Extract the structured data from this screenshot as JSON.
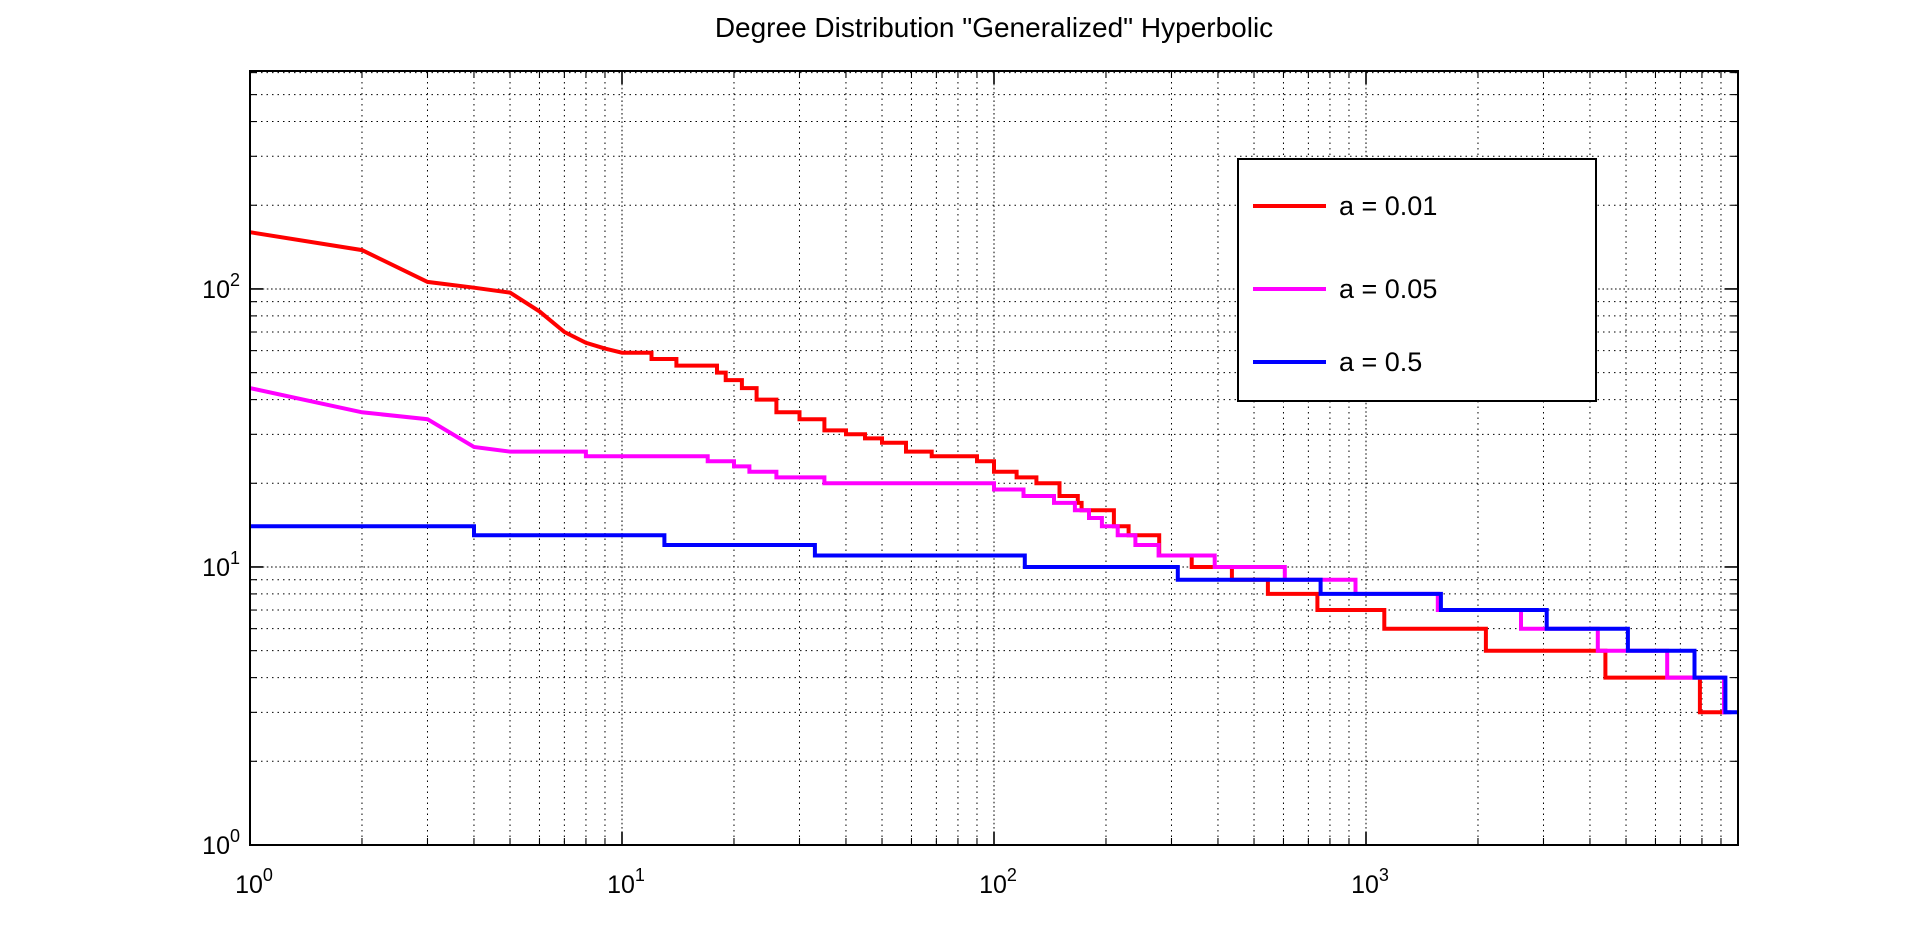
{
  "title": "Degree Distribution \"Generalized\" Hyperbolic",
  "legend": {
    "position": "upper-right",
    "entries": [
      {
        "label": "a = 0.01",
        "color": "#ff0000"
      },
      {
        "label": "a = 0.05",
        "color": "#ff00ff"
      },
      {
        "label": "a = 0.5",
        "color": "#0000ff"
      }
    ]
  },
  "axes": {
    "x_scale": "log",
    "y_scale": "log",
    "xlim": [
      1,
      10000
    ],
    "ylim": [
      1,
      608
    ],
    "x_tick_base": "10",
    "x_tick_exponents": [
      0,
      1,
      2,
      3
    ],
    "y_tick_base": "10",
    "y_tick_exponents": [
      0,
      1,
      2
    ],
    "grid": "major-and-minor-dotted",
    "grid_color": "#000000",
    "box_color": "#000000"
  },
  "chart_data": {
    "type": "line",
    "title": "Degree Distribution \"Generalized\" Hyperbolic",
    "xlabel": "",
    "ylabel": "",
    "x_scale": "log",
    "y_scale": "log",
    "xlim": [
      1,
      10000
    ],
    "ylim": [
      1,
      608
    ],
    "legend_position": "upper-right",
    "series": [
      {
        "name": "a = 0.01",
        "color": "#ff0000",
        "line_width": 4,
        "head": [
          [
            1,
            160
          ],
          [
            2,
            138
          ],
          [
            3,
            106
          ],
          [
            4,
            101
          ],
          [
            5,
            97
          ],
          [
            6,
            83
          ],
          [
            7,
            70
          ],
          [
            8,
            64
          ],
          [
            9,
            61
          ],
          [
            10,
            59
          ]
        ],
        "steps": [
          [
            12,
            56
          ],
          [
            14,
            53
          ],
          [
            18,
            50
          ],
          [
            19,
            47
          ],
          [
            21,
            44
          ],
          [
            23,
            40
          ],
          [
            26,
            36
          ],
          [
            30,
            34
          ],
          [
            35,
            31
          ],
          [
            40,
            30
          ],
          [
            45,
            29
          ],
          [
            50,
            28
          ],
          [
            58,
            26
          ],
          [
            68,
            25
          ],
          [
            90,
            24
          ],
          [
            100,
            22
          ],
          [
            115,
            21
          ],
          [
            130,
            20
          ],
          [
            150,
            18
          ],
          [
            168,
            17
          ],
          [
            172,
            16
          ],
          [
            210,
            14
          ],
          [
            230,
            13
          ],
          [
            278,
            11
          ],
          [
            340,
            10
          ],
          [
            436,
            9
          ],
          [
            545,
            8
          ],
          [
            740,
            7
          ],
          [
            1120,
            6
          ],
          [
            2100,
            5
          ],
          [
            4400,
            4
          ],
          [
            7900,
            3
          ]
        ],
        "end_x": 9300
      },
      {
        "name": "a = 0.05",
        "color": "#ff00ff",
        "line_width": 4,
        "head": [
          [
            1,
            44
          ],
          [
            2,
            36
          ],
          [
            3,
            34
          ],
          [
            4,
            27
          ],
          [
            5,
            26
          ]
        ],
        "steps": [
          [
            8,
            25
          ],
          [
            17,
            24
          ],
          [
            20,
            23
          ],
          [
            22,
            22
          ],
          [
            26,
            21
          ],
          [
            35,
            20
          ],
          [
            100,
            19
          ],
          [
            120,
            18
          ],
          [
            145,
            17
          ],
          [
            165,
            16
          ],
          [
            180,
            15
          ],
          [
            195,
            14
          ],
          [
            215,
            13
          ],
          [
            240,
            12
          ],
          [
            277,
            11
          ],
          [
            392,
            10
          ],
          [
            605,
            9
          ],
          [
            937,
            8
          ],
          [
            1560,
            7
          ],
          [
            2610,
            6
          ],
          [
            4200,
            5
          ],
          [
            6450,
            4
          ],
          [
            9170,
            3
          ]
        ],
        "end_x": 9600
      },
      {
        "name": "a = 0.5",
        "color": "#0000ff",
        "line_width": 4,
        "head": [
          [
            1,
            14
          ]
        ],
        "steps": [
          [
            4,
            13
          ],
          [
            13,
            12
          ],
          [
            33,
            11
          ],
          [
            121,
            10
          ],
          [
            312,
            9
          ],
          [
            755,
            8
          ],
          [
            1590,
            7
          ],
          [
            3060,
            6
          ],
          [
            5060,
            5
          ],
          [
            7640,
            4
          ],
          [
            9250,
            3
          ]
        ],
        "end_x": 10000
      }
    ]
  }
}
